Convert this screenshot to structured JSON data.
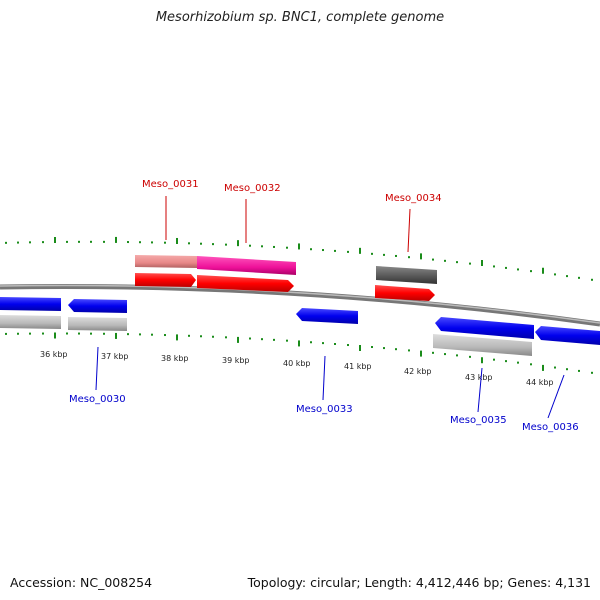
{
  "title": "Mesorhizobium sp. BNC1, complete genome",
  "footer": {
    "accession": "Accession: NC_008254",
    "summary": "Topology: circular; Length: 4,412,446 bp; Genes: 4,131"
  },
  "colors": {
    "backbone": "#808080",
    "tick": "#1a8c1a",
    "forward_label": "#cc0000",
    "reverse_label": "#0000cc",
    "cds_forward": "#ff0000",
    "cds_reverse": "#0000ff",
    "gene_forward_pink": "#ee8888",
    "gene_forward_magenta": "#ee1199",
    "gene_forward_dark": "#555555",
    "gene_reverse_gray": "#bbbbbb"
  },
  "kbp_ticks": [
    "36 kbp",
    "37 kbp",
    "38 kbp",
    "39 kbp",
    "40 kbp",
    "41 kbp",
    "42 kbp",
    "43 kbp",
    "44 kbp"
  ],
  "gene_labels": {
    "meso_0030": "Meso_0030",
    "meso_0031": "Meso_0031",
    "meso_0032": "Meso_0032",
    "meso_0033": "Meso_0033",
    "meso_0034": "Meso_0034",
    "meso_0035": "Meso_0035",
    "meso_0036": "Meso_0036"
  }
}
